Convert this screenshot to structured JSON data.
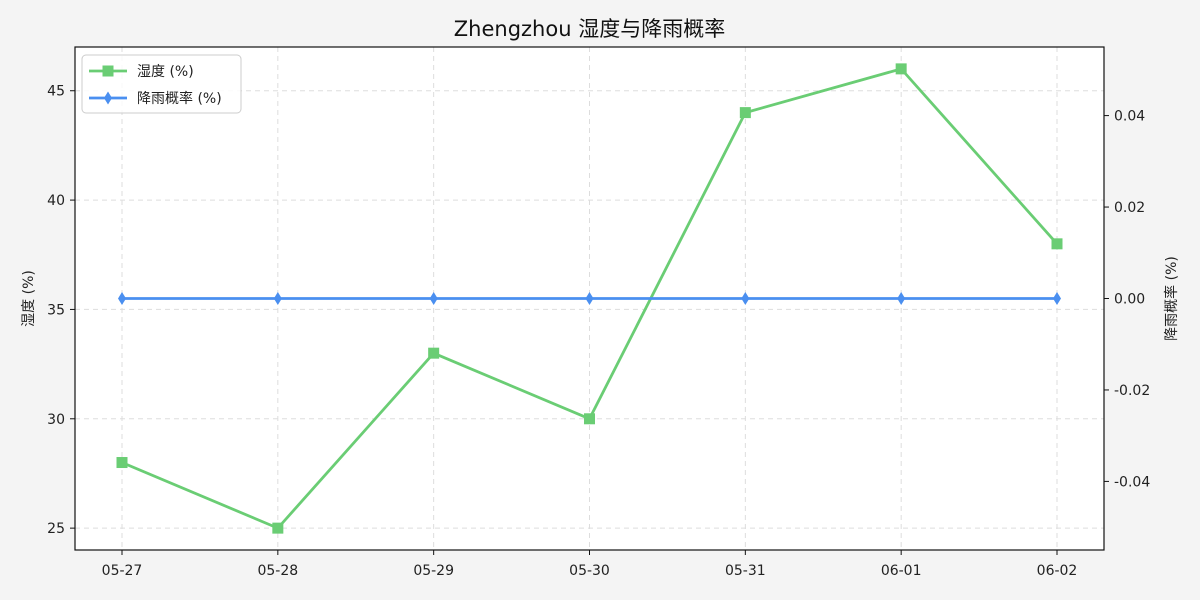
{
  "chart_data": {
    "type": "line",
    "title": "Zhengzhou 湿度与降雨概率",
    "categories": [
      "05-27",
      "05-28",
      "05-29",
      "05-30",
      "05-31",
      "06-01",
      "06-02"
    ],
    "ylabel_left": "湿度 (%)",
    "ylabel_right": "降雨概率 (%)",
    "ylim_left": [
      24,
      47
    ],
    "ylim_right": [
      -0.055,
      0.055
    ],
    "yticks_left": [
      "25",
      "30",
      "35",
      "40",
      "45"
    ],
    "yticks_right": [
      "-0.04",
      "-0.02",
      "0.00",
      "0.02",
      "0.04"
    ],
    "grid": true,
    "legend_position": "top-left",
    "series": [
      {
        "name": "湿度 (%)",
        "axis": "left",
        "color": "#6acd74",
        "marker": "square",
        "values": [
          28,
          25,
          33,
          30,
          44,
          46,
          38
        ]
      },
      {
        "name": "降雨概率 (%)",
        "axis": "right",
        "color": "#4a8ff0",
        "marker": "diamond",
        "values": [
          0,
          0,
          0,
          0,
          0,
          0,
          0
        ]
      }
    ]
  }
}
